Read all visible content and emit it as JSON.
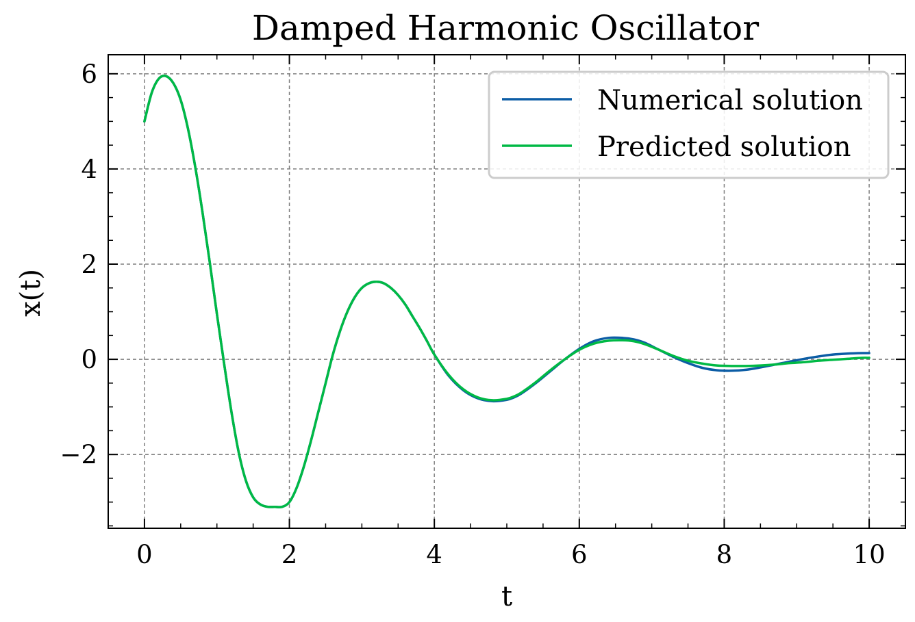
{
  "chart_data": {
    "type": "line",
    "title": "Damped Harmonic Oscillator",
    "xlabel": "t",
    "ylabel": "x(t)",
    "xlim": [
      -0.5,
      10.5
    ],
    "ylim": [
      -3.55,
      6.4
    ],
    "xticks": [
      0,
      2,
      4,
      6,
      8,
      10
    ],
    "xtick_labels": [
      "0",
      "2",
      "4",
      "6",
      "8",
      "10"
    ],
    "yticks": [
      -2,
      0,
      2,
      4,
      6
    ],
    "ytick_labels": [
      "−2",
      "0",
      "2",
      "4",
      "6"
    ],
    "grid": true,
    "legend_position": "top-right",
    "series": [
      {
        "name": "Numerical solution",
        "color": "#0C5DA5",
        "x": [
          0,
          0.1,
          0.2,
          0.3,
          0.4,
          0.5,
          0.6,
          0.7,
          0.8,
          0.9,
          1.0,
          1.1,
          1.2,
          1.3,
          1.4,
          1.5,
          1.6,
          1.7,
          1.8,
          1.9,
          2.0,
          2.1,
          2.2,
          2.3,
          2.4,
          2.5,
          2.6,
          2.7,
          2.8,
          2.9,
          3.0,
          3.1,
          3.2,
          3.3,
          3.4,
          3.5,
          3.6,
          3.7,
          3.8,
          3.9,
          4.0,
          4.2,
          4.4,
          4.6,
          4.8,
          5.0,
          5.1,
          5.2,
          5.4,
          5.6,
          5.8,
          6.0,
          6.2,
          6.4,
          6.6,
          6.75,
          6.9,
          7.1,
          7.3,
          7.5,
          7.7,
          7.9,
          8.1,
          8.3,
          8.5,
          8.7,
          8.9,
          9.1,
          9.3,
          9.5,
          9.7,
          9.9,
          10.0
        ],
        "y": [
          5.0,
          5.6,
          5.9,
          5.95,
          5.8,
          5.45,
          4.85,
          4.05,
          3.1,
          2.05,
          0.95,
          -0.1,
          -1.1,
          -1.95,
          -2.55,
          -2.9,
          -3.05,
          -3.1,
          -3.1,
          -3.1,
          -3.0,
          -2.7,
          -2.25,
          -1.7,
          -1.1,
          -0.5,
          0.1,
          0.6,
          1.0,
          1.3,
          1.5,
          1.6,
          1.63,
          1.6,
          1.5,
          1.35,
          1.15,
          0.9,
          0.65,
          0.38,
          0.1,
          -0.35,
          -0.65,
          -0.82,
          -0.88,
          -0.85,
          -0.8,
          -0.72,
          -0.5,
          -0.25,
          0.0,
          0.22,
          0.38,
          0.45,
          0.45,
          0.42,
          0.35,
          0.2,
          0.05,
          -0.08,
          -0.18,
          -0.23,
          -0.24,
          -0.22,
          -0.17,
          -0.11,
          -0.05,
          0.01,
          0.06,
          0.1,
          0.12,
          0.13,
          0.13
        ]
      },
      {
        "name": "Predicted solution",
        "color": "#00B945",
        "x": [
          0,
          0.1,
          0.2,
          0.3,
          0.4,
          0.5,
          0.6,
          0.7,
          0.8,
          0.9,
          1.0,
          1.1,
          1.2,
          1.3,
          1.4,
          1.5,
          1.6,
          1.7,
          1.8,
          1.9,
          2.0,
          2.1,
          2.2,
          2.3,
          2.4,
          2.5,
          2.6,
          2.7,
          2.8,
          2.9,
          3.0,
          3.1,
          3.2,
          3.3,
          3.4,
          3.5,
          3.6,
          3.7,
          3.8,
          3.9,
          4.0,
          4.2,
          4.4,
          4.6,
          4.8,
          5.0,
          5.1,
          5.2,
          5.4,
          5.6,
          5.8,
          6.0,
          6.2,
          6.4,
          6.6,
          6.75,
          6.9,
          7.1,
          7.3,
          7.5,
          7.7,
          7.9,
          8.1,
          8.3,
          8.5,
          8.7,
          8.9,
          9.1,
          9.3,
          9.5,
          9.7,
          9.9,
          10.0
        ],
        "y": [
          5.0,
          5.6,
          5.9,
          5.95,
          5.8,
          5.45,
          4.85,
          4.05,
          3.1,
          2.05,
          0.95,
          -0.1,
          -1.1,
          -1.95,
          -2.55,
          -2.9,
          -3.05,
          -3.1,
          -3.1,
          -3.1,
          -3.0,
          -2.7,
          -2.25,
          -1.7,
          -1.1,
          -0.5,
          0.1,
          0.6,
          1.0,
          1.3,
          1.5,
          1.6,
          1.63,
          1.6,
          1.5,
          1.35,
          1.15,
          0.9,
          0.65,
          0.38,
          0.1,
          -0.33,
          -0.63,
          -0.8,
          -0.86,
          -0.83,
          -0.78,
          -0.7,
          -0.48,
          -0.23,
          0.0,
          0.2,
          0.33,
          0.39,
          0.4,
          0.38,
          0.32,
          0.2,
          0.07,
          -0.03,
          -0.09,
          -0.13,
          -0.14,
          -0.14,
          -0.13,
          -0.11,
          -0.08,
          -0.06,
          -0.03,
          -0.01,
          0.01,
          0.03,
          0.03
        ]
      }
    ]
  }
}
